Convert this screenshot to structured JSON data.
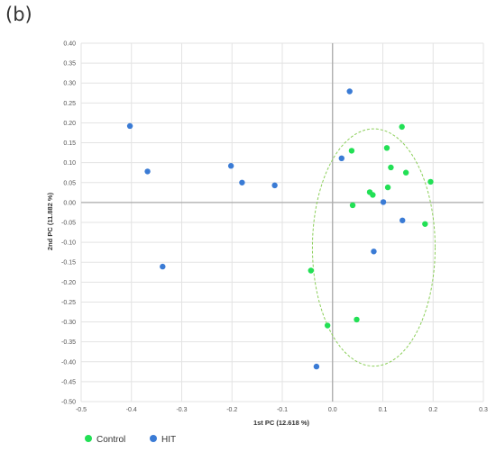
{
  "panel_label": "(b)",
  "chart_data": {
    "type": "scatter",
    "title": "",
    "xlabel": "1st PC (12.618 %)",
    "ylabel": "2nd PC (11.882 %)",
    "xlim": [
      -0.5,
      0.3
    ],
    "ylim": [
      -0.5,
      0.4
    ],
    "x_ticks": [
      "-0.5",
      "-0.4",
      "-0.3",
      "-0.2",
      "-0.1",
      "0.0",
      "0.1",
      "0.2",
      "0.3"
    ],
    "y_ticks": [
      "0.40",
      "0.35",
      "0.30",
      "0.25",
      "0.20",
      "0.15",
      "0.10",
      "0.05",
      "0.00",
      "-0.05",
      "-0.10",
      "-0.15",
      "-0.20",
      "-0.25",
      "-0.30",
      "-0.35",
      "-0.40",
      "-0.45",
      "-0.50"
    ],
    "grid": true,
    "legend_position": "bottom-left",
    "series": [
      {
        "name": "Control",
        "color": "#22e055",
        "points": [
          [
            0.138,
            0.19
          ],
          [
            0.108,
            0.137
          ],
          [
            0.038,
            0.13
          ],
          [
            0.116,
            0.088
          ],
          [
            0.146,
            0.075
          ],
          [
            0.195,
            0.052
          ],
          [
            0.11,
            0.038
          ],
          [
            0.074,
            0.026
          ],
          [
            0.08,
            0.019
          ],
          [
            0.04,
            -0.007
          ],
          [
            0.184,
            -0.054
          ],
          [
            -0.043,
            -0.171
          ],
          [
            0.048,
            -0.294
          ],
          [
            -0.01,
            -0.309
          ]
        ]
      },
      {
        "name": "HIT",
        "color": "#3a7bd5",
        "points": [
          [
            0.034,
            0.279
          ],
          [
            -0.403,
            0.192
          ],
          [
            -0.368,
            0.078
          ],
          [
            -0.202,
            0.092
          ],
          [
            -0.18,
            0.05
          ],
          [
            -0.115,
            0.043
          ],
          [
            0.018,
            0.111
          ],
          [
            0.101,
            0.001
          ],
          [
            0.139,
            -0.045
          ],
          [
            0.082,
            -0.123
          ],
          [
            -0.338,
            -0.161
          ],
          [
            -0.032,
            -0.412
          ]
        ]
      }
    ],
    "annotations": [
      {
        "type": "dashed-ellipse",
        "color": "#8ccf5a",
        "cx": 0.082,
        "cy": -0.113,
        "rx": 0.122,
        "ry": 0.298
      }
    ]
  }
}
